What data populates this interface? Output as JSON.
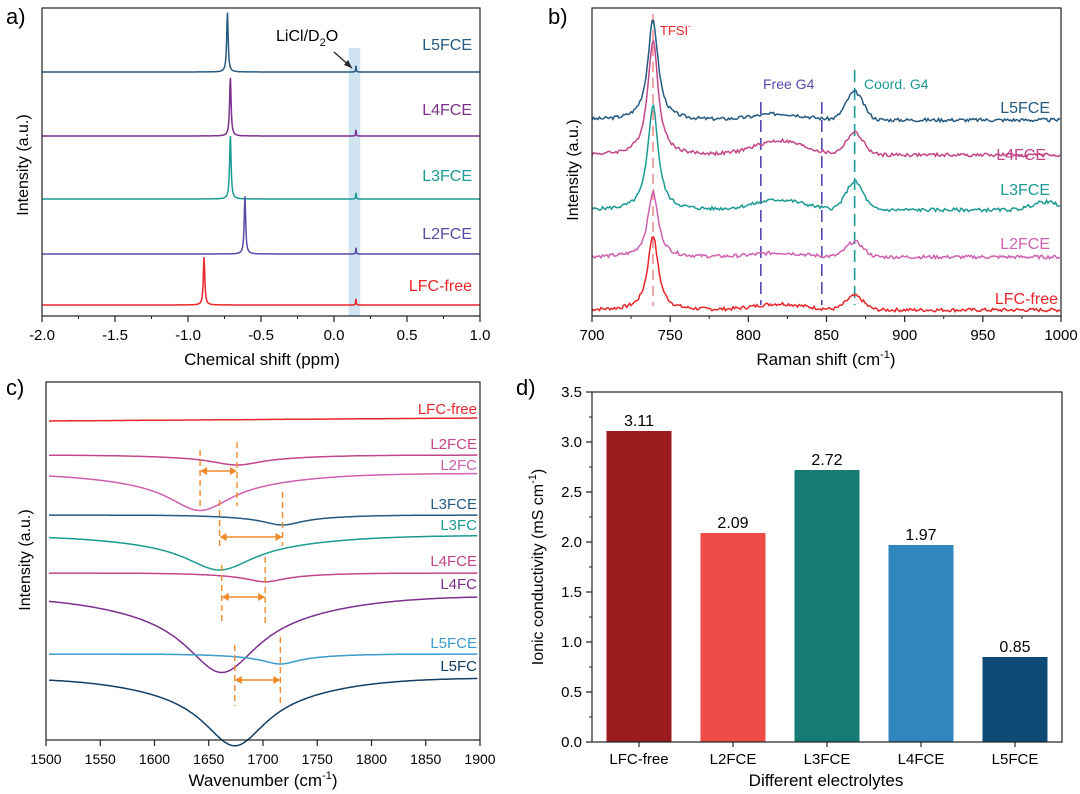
{
  "colors": {
    "red": "#e8262a",
    "pink": "#c4468a",
    "teal": "#1c9a94",
    "purple": "#7c2f8f",
    "dblue": "#255a82",
    "violet": "#5b4aa6",
    "lightpink": "#d060b0",
    "lblue": "#3b9bcc",
    "navy": "#123f66",
    "orange": "#f08a2a",
    "highlight": "#c9dff0",
    "dashRed": "#f08a8a",
    "dashPurple": "#5548b0",
    "dashTeal": "#1c9a94"
  },
  "panels": {
    "a": {
      "letter": "a)",
      "xlabel": "Chemical shift (ppm)",
      "ylabel": "Intensity (a.u.)",
      "annotation": "LiCl/D",
      "annotation_sub": "2",
      "annotation_tail": "O"
    },
    "b": {
      "letter": "b)",
      "xlabel": "Raman shift (cm",
      "xlabel_sup": "-1",
      "xlabel_tail": ")",
      "ylabel": "Intensity (a.u.)",
      "annotations": {
        "tfsi": "TFSI",
        "tfsi_sup": "-",
        "free": "Free G4",
        "coord": "Coord. G4"
      }
    },
    "c": {
      "letter": "c)",
      "xlabel": "Wavenumber (cm",
      "xlabel_sup": "-1",
      "xlabel_tail": ")",
      "ylabel": "Intensity (a.u.)"
    },
    "d": {
      "letter": "d)"
    }
  },
  "chart_data": [
    {
      "panel": "a",
      "type": "line",
      "title": "",
      "xlabel": "Chemical shift (ppm)",
      "ylabel": "Intensity (a.u.)",
      "xlim": [
        -2.0,
        1.0
      ],
      "xticks": [
        "-2.0",
        "-1.5",
        "-1.0",
        "-0.5",
        "0.0",
        "0.5",
        "1.0"
      ],
      "highlight_band": [
        0.1,
        0.18
      ],
      "series": [
        {
          "name": "L5FCE",
          "peak": -0.73,
          "color": "dblue"
        },
        {
          "name": "L4FCE",
          "peak": -0.71,
          "color": "purple"
        },
        {
          "name": "L3FCE",
          "peak": -0.71,
          "color": "teal"
        },
        {
          "name": "L2FCE",
          "peak": -0.61,
          "color": "violet"
        },
        {
          "name": "LFC-free",
          "peak": -0.89,
          "color": "red"
        }
      ]
    },
    {
      "panel": "b",
      "type": "line",
      "title": "",
      "xlabel": "Raman shift (cm-1)",
      "ylabel": "Intensity (a.u.)",
      "xlim": [
        700,
        1000
      ],
      "xticks": [
        "700",
        "750",
        "800",
        "850",
        "900",
        "950",
        "1000"
      ],
      "reference_lines": [
        {
          "label": "TFSI-",
          "x": 739
        },
        {
          "label": "Free G4",
          "x": [
            808,
            847
          ]
        },
        {
          "label": "Coord. G4",
          "x": 868
        }
      ],
      "series": [
        {
          "name": "L5FCE",
          "color": "dblue"
        },
        {
          "name": "L4FCE",
          "color": "pink"
        },
        {
          "name": "L3FCE",
          "color": "teal"
        },
        {
          "name": "L2FCE",
          "color": "lightpink"
        },
        {
          "name": "LFC-free",
          "color": "red"
        }
      ]
    },
    {
      "panel": "c",
      "type": "line",
      "title": "",
      "xlabel": "Wavenumber (cm-1)",
      "ylabel": "Intensity (a.u.)",
      "xlim": [
        1500,
        1900
      ],
      "xticks": [
        "1500",
        "1550",
        "1600",
        "1650",
        "1700",
        "1750",
        "1800",
        "1850",
        "1900"
      ],
      "series": [
        {
          "name": "LFC-free",
          "color": "red",
          "min": null
        },
        {
          "name": "L2FCE",
          "color": "pink",
          "min": 1676
        },
        {
          "name": "L2FC",
          "color": "lightpink",
          "min": 1642
        },
        {
          "name": "L3FCE",
          "color": "dblue",
          "min": 1718
        },
        {
          "name": "L3FC",
          "color": "teal",
          "min": 1660
        },
        {
          "name": "L4FCE",
          "color": "pink",
          "min": 1702
        },
        {
          "name": "L4FC",
          "color": "purple",
          "min": 1662
        },
        {
          "name": "L5FCE",
          "color": "lblue",
          "min": 1716
        },
        {
          "name": "L5FC",
          "color": "navy",
          "min": 1674
        }
      ],
      "shifts": [
        {
          "from": 1642,
          "to": 1676
        },
        {
          "from": 1660,
          "to": 1718
        },
        {
          "from": 1662,
          "to": 1702
        },
        {
          "from": 1674,
          "to": 1716
        }
      ]
    },
    {
      "panel": "d",
      "type": "bar",
      "title": "",
      "xlabel": "Different electrolytes",
      "ylabel": "Ionic conductivity (mS cm",
      "ylabel_sup": "-1",
      "ylabel_tail": ")",
      "ylim": [
        0,
        3.5
      ],
      "yticks": [
        "0.0",
        "0.5",
        "1.0",
        "1.5",
        "2.0",
        "2.5",
        "3.0",
        "3.5"
      ],
      "categories": [
        "LFC-free",
        "L2FCE",
        "L3FCE",
        "L4FCE",
        "L5FCE"
      ],
      "values": [
        3.11,
        2.09,
        2.72,
        1.97,
        0.85
      ],
      "value_labels": [
        "3.11",
        "2.09",
        "2.72",
        "1.97",
        "0.85"
      ],
      "bar_colors": [
        "#9b1b1e",
        "#ef4b47",
        "#157b74",
        "#3286c0",
        "#0d4a75"
      ]
    }
  ]
}
